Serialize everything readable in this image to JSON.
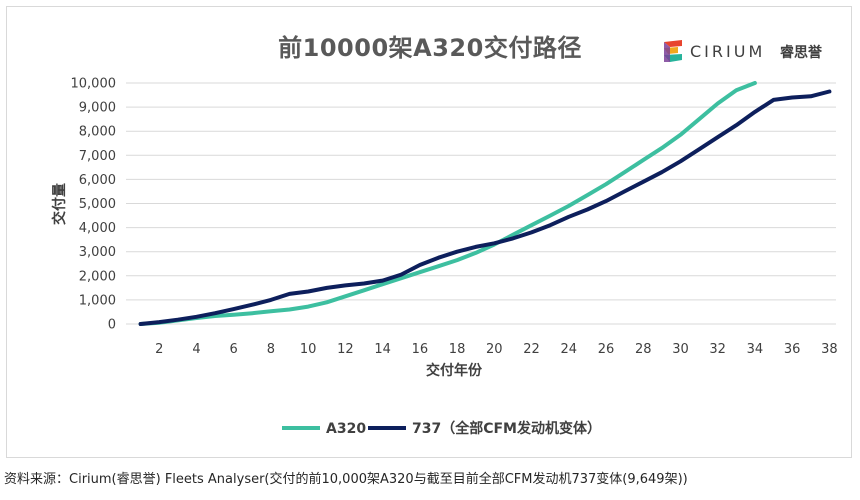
{
  "chart_data": {
    "type": "line",
    "title": "前10000架A320交付路径",
    "xlabel": "交付年份",
    "ylabel": "交付量",
    "x_ticks": [
      "2",
      "4",
      "6",
      "8",
      "10",
      "12",
      "14",
      "16",
      "18",
      "20",
      "22",
      "24",
      "26",
      "28",
      "30",
      "32",
      "34",
      "36",
      "38"
    ],
    "y_ticks": [
      "0",
      "1,000",
      "2,000",
      "3,000",
      "4,000",
      "5,000",
      "6,000",
      "7,000",
      "8,000",
      "9,000",
      "10,000"
    ],
    "xlim": [
      0,
      39
    ],
    "ylim": [
      0,
      10000
    ],
    "grid": "horizontal",
    "legend_position": "bottom",
    "series": [
      {
        "name": "A320",
        "color": "#3dbfa0",
        "x": [
          1,
          2,
          3,
          4,
          5,
          6,
          7,
          8,
          9,
          10,
          11,
          12,
          13,
          14,
          15,
          16,
          17,
          18,
          19,
          20,
          21,
          22,
          23,
          24,
          25,
          26,
          27,
          28,
          29,
          30,
          31,
          32,
          33,
          34
        ],
        "y": [
          0,
          50,
          150,
          250,
          330,
          380,
          450,
          530,
          600,
          720,
          900,
          1150,
          1400,
          1650,
          1900,
          2150,
          2400,
          2650,
          2950,
          3300,
          3700,
          4100,
          4500,
          4900,
          5350,
          5800,
          6300,
          6800,
          7300,
          7850,
          8500,
          9150,
          9700,
          10000
        ]
      },
      {
        "name": "737（全部CFM发动机变体）",
        "color": "#0d1f5c",
        "x": [
          1,
          2,
          3,
          4,
          5,
          6,
          7,
          8,
          9,
          10,
          11,
          12,
          13,
          14,
          15,
          16,
          17,
          18,
          19,
          20,
          21,
          22,
          23,
          24,
          25,
          26,
          27,
          28,
          29,
          30,
          31,
          32,
          33,
          34,
          35,
          36,
          37,
          38
        ],
        "y": [
          0,
          80,
          180,
          300,
          450,
          620,
          800,
          1000,
          1250,
          1350,
          1500,
          1600,
          1680,
          1800,
          2050,
          2450,
          2750,
          3000,
          3200,
          3350,
          3550,
          3800,
          4100,
          4450,
          4750,
          5100,
          5500,
          5900,
          6300,
          6750,
          7250,
          7750,
          8250,
          8800,
          9300,
          9400,
          9450,
          9649
        ]
      }
    ]
  },
  "logo": {
    "name": "CIRIUM",
    "cn": "睿思誉"
  },
  "footer": "资料来源：Cirium(睿思誉) Fleets Analyser(交付的前10,000架A320与截至目前全部CFM发动机737变体(9,649架))"
}
